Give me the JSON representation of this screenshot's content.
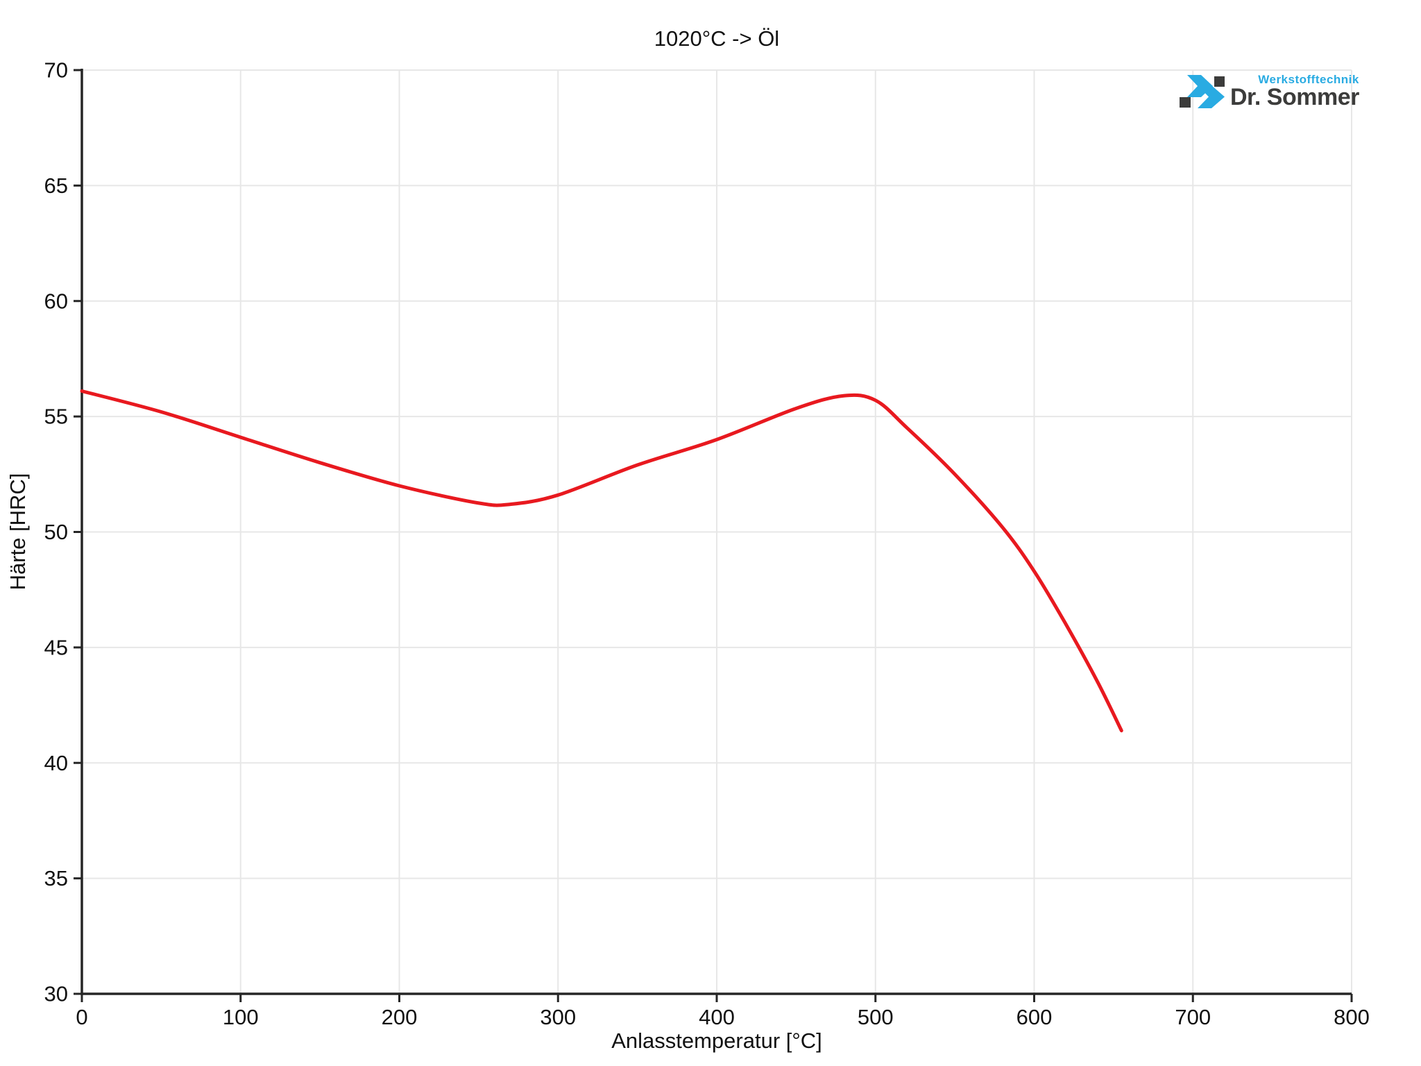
{
  "chart_data": {
    "type": "line",
    "title": "1020°C -> Öl",
    "xlabel": "Anlasstemperatur [°C]",
    "ylabel": "Härte [HRC]",
    "xlim": [
      0,
      800
    ],
    "ylim": [
      30,
      70
    ],
    "x_ticks": [
      0,
      100,
      200,
      300,
      400,
      500,
      600,
      700,
      800
    ],
    "y_ticks": [
      30,
      35,
      40,
      45,
      50,
      55,
      60,
      65,
      70
    ],
    "grid": true,
    "legend_position": "none",
    "series": [
      {
        "color": "#e8191f",
        "x": [
          0,
          50,
          100,
          150,
          200,
          250,
          270,
          300,
          350,
          400,
          450,
          480,
          500,
          520,
          550,
          580,
          600,
          620,
          640,
          655
        ],
        "y": [
          56.1,
          55.2,
          54.1,
          53.0,
          52.0,
          51.25,
          51.2,
          51.6,
          52.9,
          54.0,
          55.35,
          55.9,
          55.7,
          54.5,
          52.5,
          50.2,
          48.3,
          46.0,
          43.5,
          41.4
        ]
      }
    ]
  },
  "colors": {
    "axis": "#262626",
    "grid": "#e7e7e7",
    "tick_text": "#111111",
    "curve": "#e8191f",
    "background": "#ffffff"
  },
  "logo": {
    "tagline": "Werkstofftechnik",
    "brand": "Dr. Sommer",
    "accent": "#29abe2",
    "dark": "#3c3c3b"
  }
}
